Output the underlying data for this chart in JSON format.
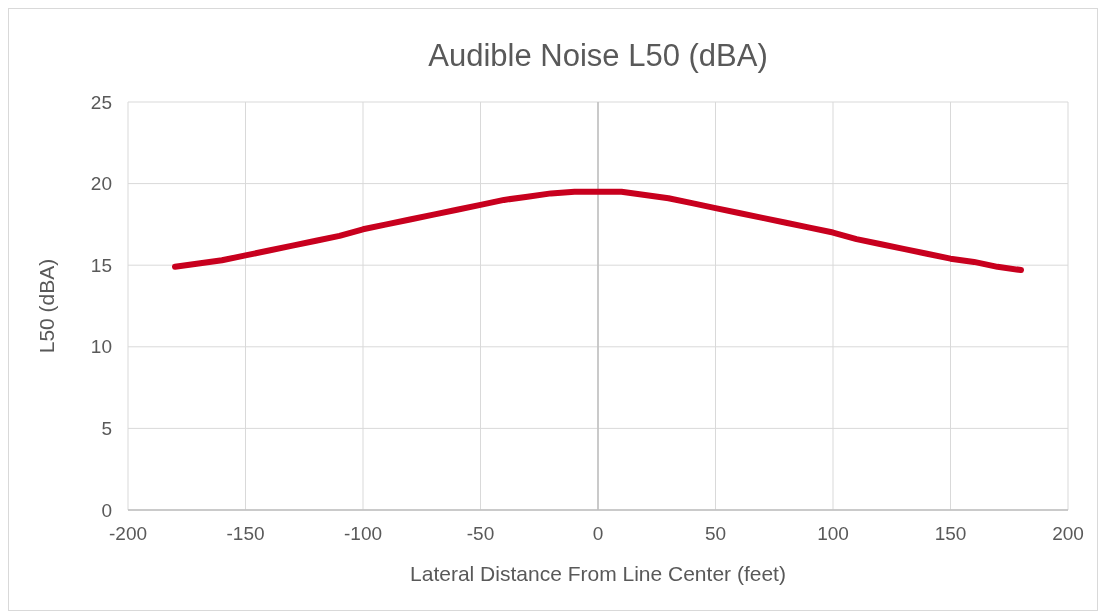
{
  "chart_data": {
    "type": "line",
    "title": "Audible Noise L50 (dBA)",
    "xlabel": "Lateral Distance From Line Center (feet)",
    "ylabel": "L50 (dBA)",
    "x": [
      -180,
      -170,
      -160,
      -150,
      -140,
      -130,
      -120,
      -110,
      -100,
      -90,
      -80,
      -70,
      -60,
      -50,
      -40,
      -30,
      -20,
      -10,
      0,
      10,
      20,
      30,
      40,
      50,
      60,
      70,
      80,
      90,
      100,
      110,
      120,
      130,
      140,
      150,
      160,
      170,
      180
    ],
    "series": [
      {
        "color": "#c8001e",
        "values": [
          14.9,
          15.1,
          15.3,
          15.6,
          15.9,
          16.2,
          16.5,
          16.8,
          17.2,
          17.5,
          17.8,
          18.1,
          18.4,
          18.7,
          19.0,
          19.2,
          19.4,
          19.5,
          19.5,
          19.5,
          19.3,
          19.1,
          18.8,
          18.5,
          18.2,
          17.9,
          17.6,
          17.3,
          17.0,
          16.6,
          16.3,
          16.0,
          15.7,
          15.4,
          15.2,
          14.9,
          14.7
        ]
      }
    ],
    "xlim": [
      -200,
      200
    ],
    "xticks": [
      -200,
      -150,
      -100,
      -50,
      0,
      50,
      100,
      150,
      200
    ],
    "ylim": [
      0,
      25
    ],
    "yticks": [
      0,
      5,
      10,
      15,
      20,
      25
    ],
    "grid": true,
    "marker": "none",
    "line_style": "solid"
  }
}
